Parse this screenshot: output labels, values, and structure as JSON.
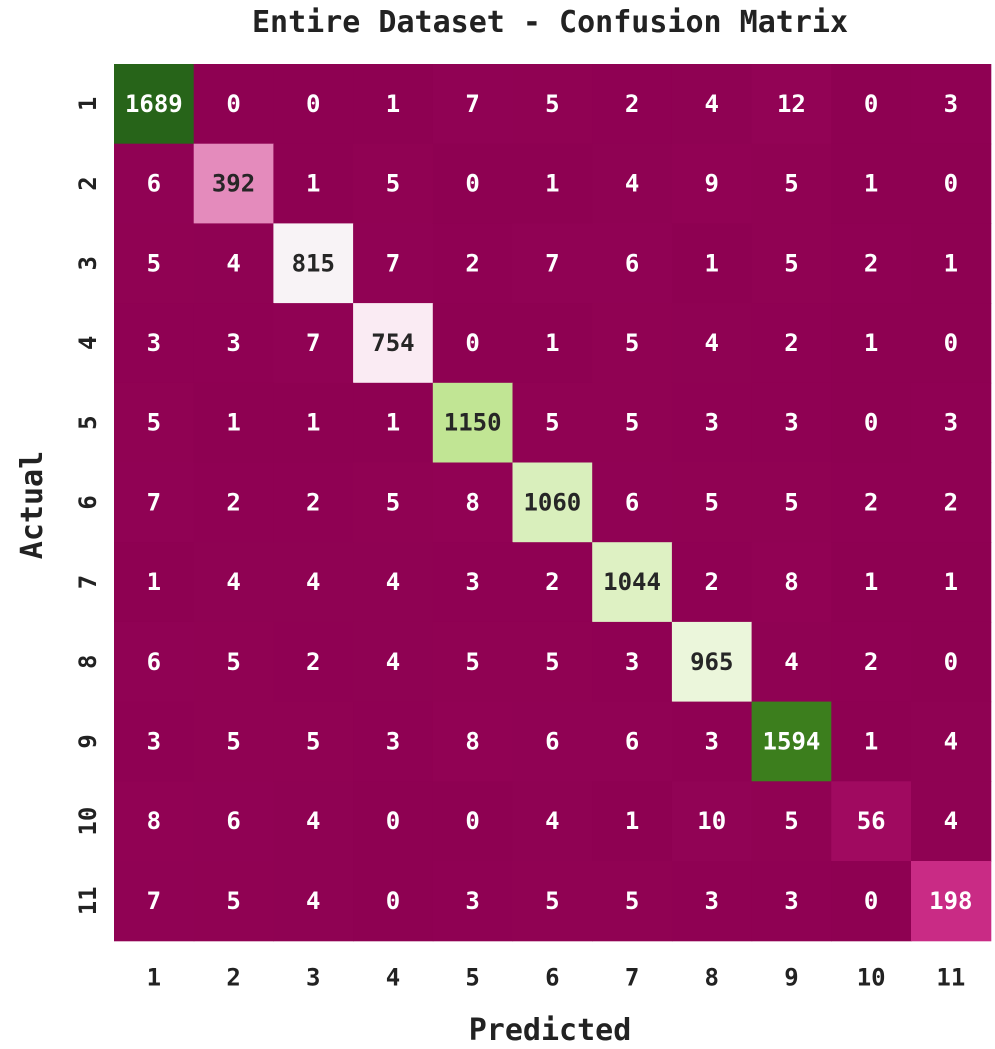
{
  "chart_data": {
    "type": "heatmap",
    "title": "Entire Dataset - Confusion Matrix",
    "xlabel": "Predicted",
    "ylabel": "Actual",
    "x_categories": [
      "1",
      "2",
      "3",
      "4",
      "5",
      "6",
      "7",
      "8",
      "9",
      "10",
      "11"
    ],
    "y_categories": [
      "1",
      "2",
      "3",
      "4",
      "5",
      "6",
      "7",
      "8",
      "9",
      "10",
      "11"
    ],
    "colormap": "PiYG",
    "color_range": [
      0,
      1689
    ],
    "colorbar": false,
    "values": [
      [
        1689,
        0,
        0,
        1,
        7,
        5,
        2,
        4,
        12,
        0,
        3
      ],
      [
        6,
        392,
        1,
        5,
        0,
        1,
        4,
        9,
        5,
        1,
        0
      ],
      [
        5,
        4,
        815,
        7,
        2,
        7,
        6,
        1,
        5,
        2,
        1
      ],
      [
        3,
        3,
        7,
        754,
        0,
        1,
        5,
        4,
        2,
        1,
        0
      ],
      [
        5,
        1,
        1,
        1,
        1150,
        5,
        5,
        3,
        3,
        0,
        3
      ],
      [
        7,
        2,
        2,
        5,
        8,
        1060,
        6,
        5,
        5,
        2,
        2
      ],
      [
        1,
        4,
        4,
        4,
        3,
        2,
        1044,
        2,
        8,
        1,
        1
      ],
      [
        6,
        5,
        2,
        4,
        5,
        5,
        3,
        965,
        4,
        2,
        0
      ],
      [
        3,
        5,
        5,
        3,
        8,
        6,
        6,
        3,
        1594,
        1,
        4
      ],
      [
        8,
        6,
        4,
        0,
        0,
        4,
        1,
        10,
        5,
        56,
        4
      ],
      [
        7,
        5,
        4,
        0,
        3,
        5,
        5,
        3,
        3,
        0,
        198
      ]
    ]
  }
}
